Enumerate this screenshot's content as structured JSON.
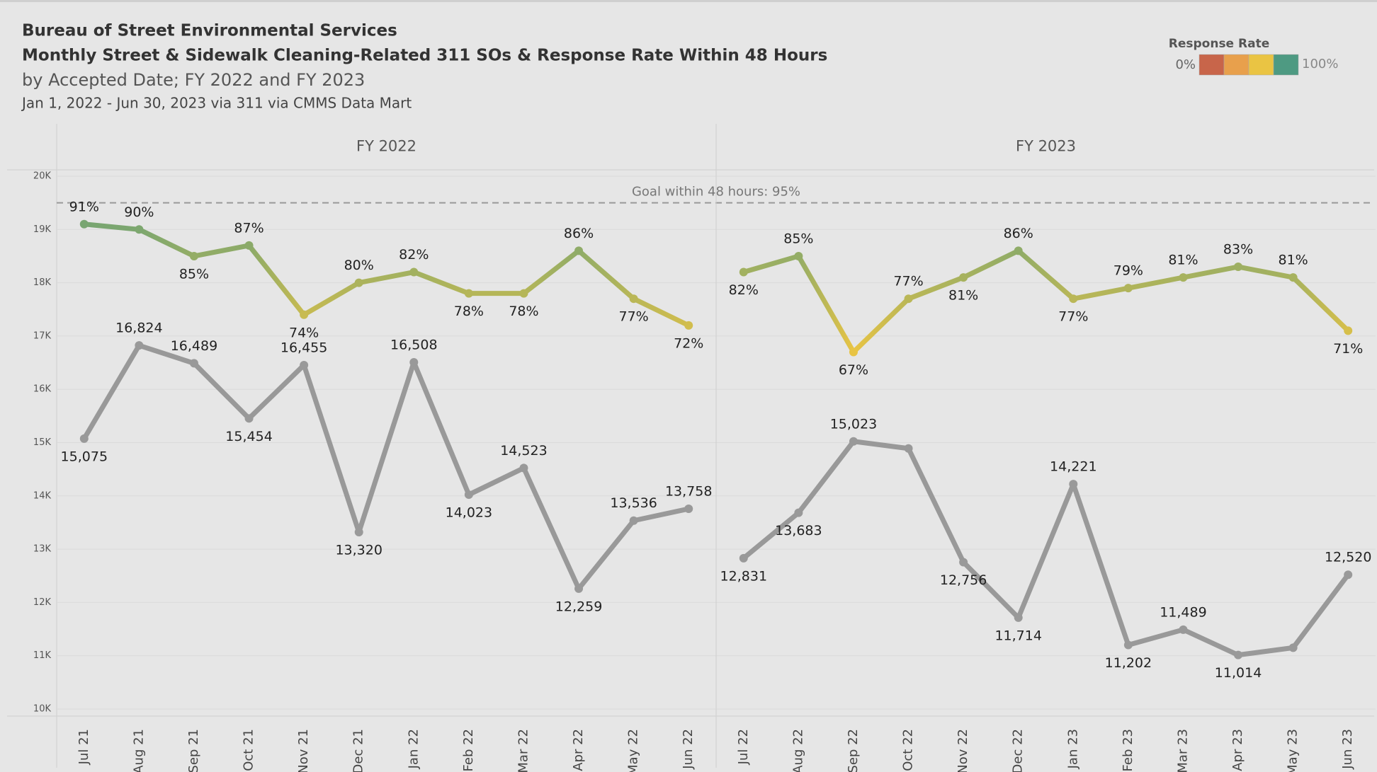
{
  "chart_data": {
    "type": "line",
    "title": "Bureau of Street Environmental Services",
    "subtitle": "Monthly Street & Sidewalk Cleaning-Related 311 SOs & Response Rate Within 48 Hours",
    "subtitle2": "by Accepted Date; FY 2022 and FY 2023",
    "note": "Jan 1, 2022 - Jun 30, 2023 via 311 via CMMS Data Mart",
    "legend": {
      "title": "Response Rate",
      "min_label": "0%",
      "max_label": "100%",
      "colors": [
        "#c8654a",
        "#e8a04c",
        "#eac443",
        "#4e9a82"
      ]
    },
    "ylim": [
      10000,
      20000
    ],
    "yticks": [
      {
        "value": 10000,
        "label": "10K"
      },
      {
        "value": 11000,
        "label": "11K"
      },
      {
        "value": 12000,
        "label": "12K"
      },
      {
        "value": 13000,
        "label": "13K"
      },
      {
        "value": 14000,
        "label": "14K"
      },
      {
        "value": 15000,
        "label": "15K"
      },
      {
        "value": 16000,
        "label": "16K"
      },
      {
        "value": 17000,
        "label": "17K"
      },
      {
        "value": 18000,
        "label": "18K"
      },
      {
        "value": 19000,
        "label": "19K"
      },
      {
        "value": 20000,
        "label": "20K"
      }
    ],
    "y2lim": [
      0,
      100
    ],
    "grid": true,
    "goal": {
      "value": 95,
      "label": "Goal within 48 hours: 95%"
    },
    "panels": [
      {
        "title": "FY 2022",
        "categories": [
          "Jul 21",
          "Aug 21",
          "Sep 21",
          "Oct 21",
          "Nov 21",
          "Dec 21",
          "Jan 22",
          "Feb 22",
          "Mar 22",
          "Apr 22",
          "May 22",
          "Jun 22"
        ],
        "series": [
          {
            "color": "#999999",
            "values": [
              15075,
              16824,
              16489,
              15454,
              16455,
              13320,
              16508,
              14023,
              14523,
              12259,
              13536,
              13758
            ],
            "value_labels": [
              "15,075",
              "16,824",
              "16,489",
              "15,454",
              "16,455",
              "13,320",
              "16,508",
              "14,023",
              "14,523",
              "12,259",
              "13,536",
              "13,758"
            ]
          },
          {
            "axis": "y2",
            "values": [
              91,
              90,
              85,
              87,
              74,
              80,
              82,
              78,
              78,
              86,
              77,
              72
            ],
            "value_labels": [
              "91%",
              "90%",
              "85%",
              "87%",
              "74%",
              "80%",
              "82%",
              "78%",
              "78%",
              "86%",
              "77%",
              "72%"
            ]
          }
        ]
      },
      {
        "title": "FY 2023",
        "categories": [
          "Jul 22",
          "Aug 22",
          "Sep 22",
          "Oct 22",
          "Nov 22",
          "Dec 22",
          "Jan 23",
          "Feb 23",
          "Mar 23",
          "Apr 23",
          "May 23",
          "Jun 23"
        ],
        "series": [
          {
            "color": "#999999",
            "values": [
              12831,
              13683,
              15023,
              14890,
              12756,
              11714,
              14221,
              11202,
              11489,
              11014,
              11150,
              12520
            ],
            "value_labels": [
              "12,831",
              "13,683",
              "15,023",
              null,
              "12,756",
              "11,714",
              "14,221",
              "11,202",
              "11,489",
              "11,014",
              null,
              "12,520"
            ]
          },
          {
            "axis": "y2",
            "values": [
              82,
              85,
              67,
              77,
              81,
              86,
              77,
              79,
              81,
              83,
              81,
              71
            ],
            "value_labels": [
              "82%",
              "85%",
              "67%",
              "77%",
              "81%",
              "86%",
              "77%",
              "79%",
              "81%",
              "83%",
              "81%",
              "71%"
            ]
          }
        ]
      }
    ]
  }
}
